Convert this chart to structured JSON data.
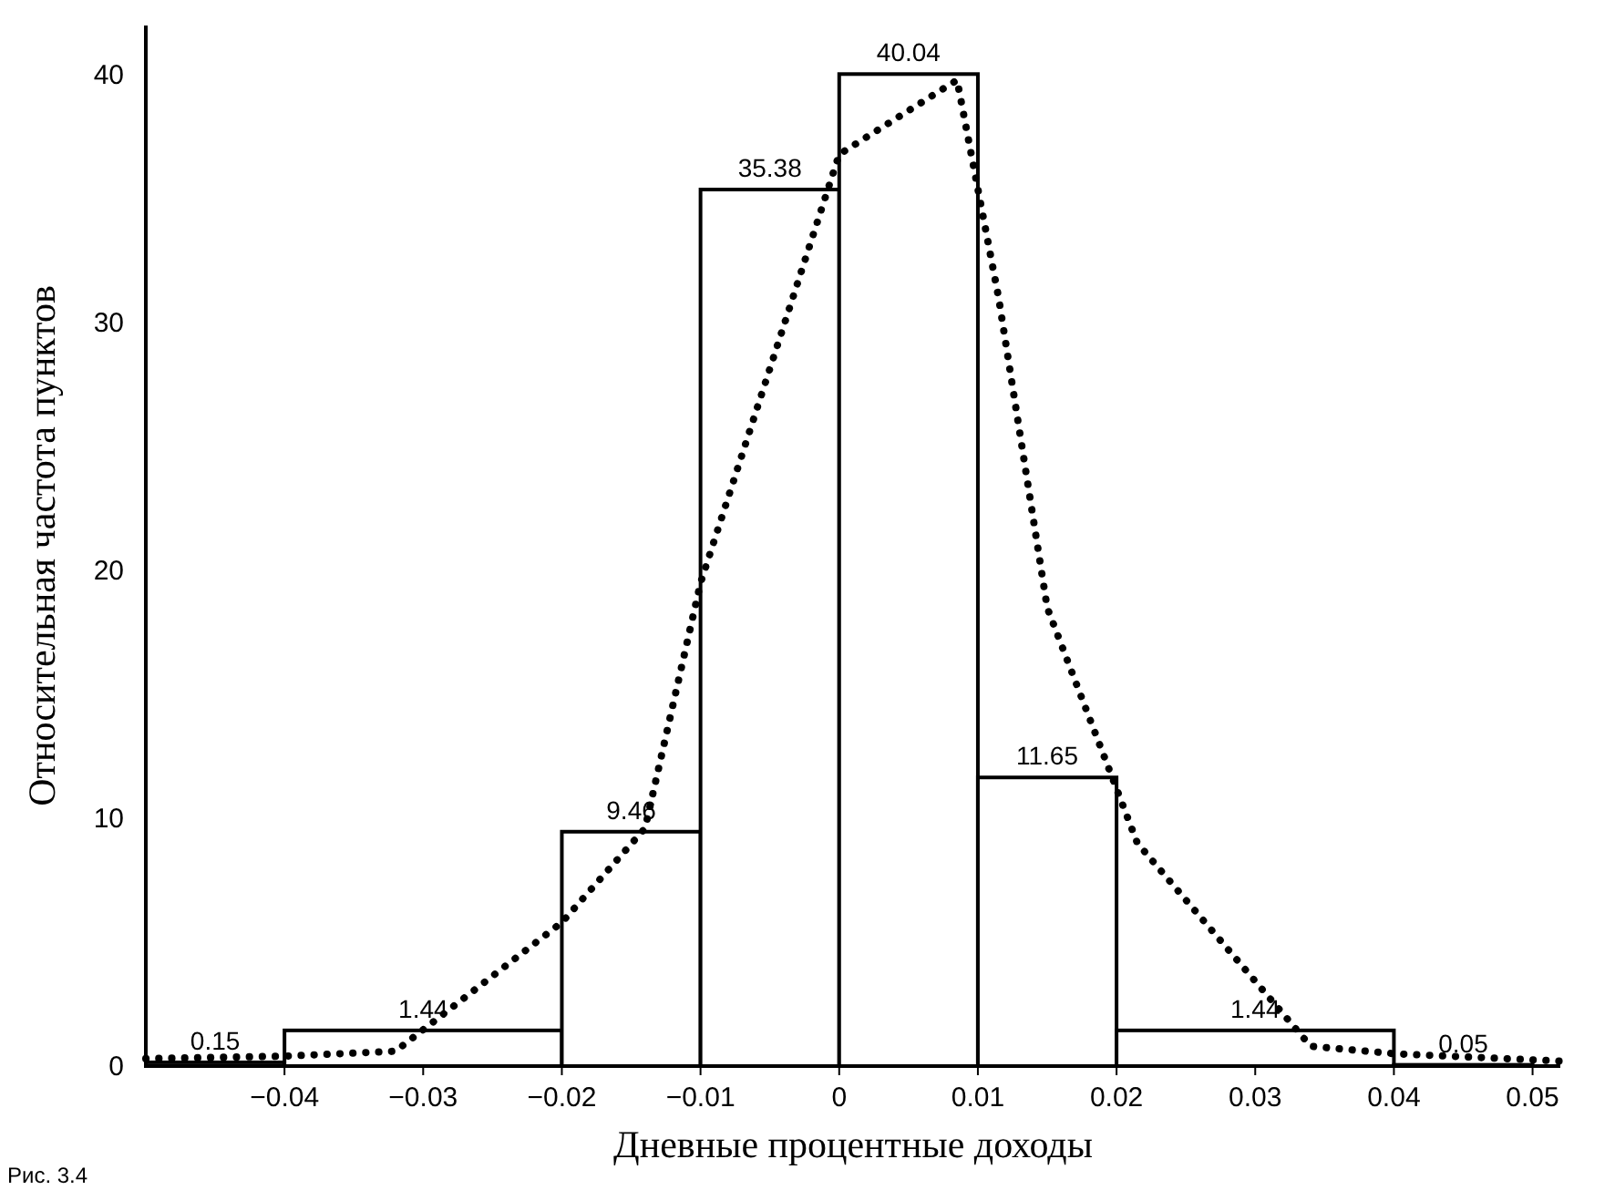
{
  "chart_data": {
    "type": "histogram",
    "xlabel": "Дневные процентные доходы",
    "ylabel": "Относительная частота пунктов",
    "bins": [
      -0.05,
      -0.04,
      -0.02,
      -0.01,
      0,
      0.01,
      0.02,
      0.04,
      0.05
    ],
    "values": [
      0.15,
      1.44,
      9.46,
      35.38,
      40.04,
      11.65,
      1.44,
      0.05
    ],
    "value_labels": [
      "0.15",
      "1.44",
      "9.46",
      "35.38",
      "40.04",
      "11.65",
      "1.44",
      "0.05"
    ],
    "series": [
      {
        "type": "line",
        "color": "#000000",
        "line_style": "dotted",
        "x": [
          -0.05,
          -0.04,
          -0.032,
          -0.02,
          -0.014,
          -0.01,
          0,
          0.0085,
          0.0115,
          0.015,
          0.0215,
          0.034,
          0.04,
          0.052
        ],
        "values": [
          0.3,
          0.4,
          0.6,
          5.8,
          9.6,
          19.5,
          36.8,
          39.8,
          31,
          18.5,
          9,
          0.8,
          0.5,
          0.2
        ]
      }
    ],
    "xlim": [
      -0.05,
      0.052
    ],
    "ylim": [
      0,
      42
    ],
    "xticks": [
      -0.04,
      -0.03,
      -0.02,
      -0.01,
      0,
      0.01,
      0.02,
      0.03,
      0.04,
      0.05
    ],
    "yticks": [
      0,
      10,
      20,
      30,
      40
    ],
    "annotations": [
      "Рис. 3.4"
    ]
  }
}
